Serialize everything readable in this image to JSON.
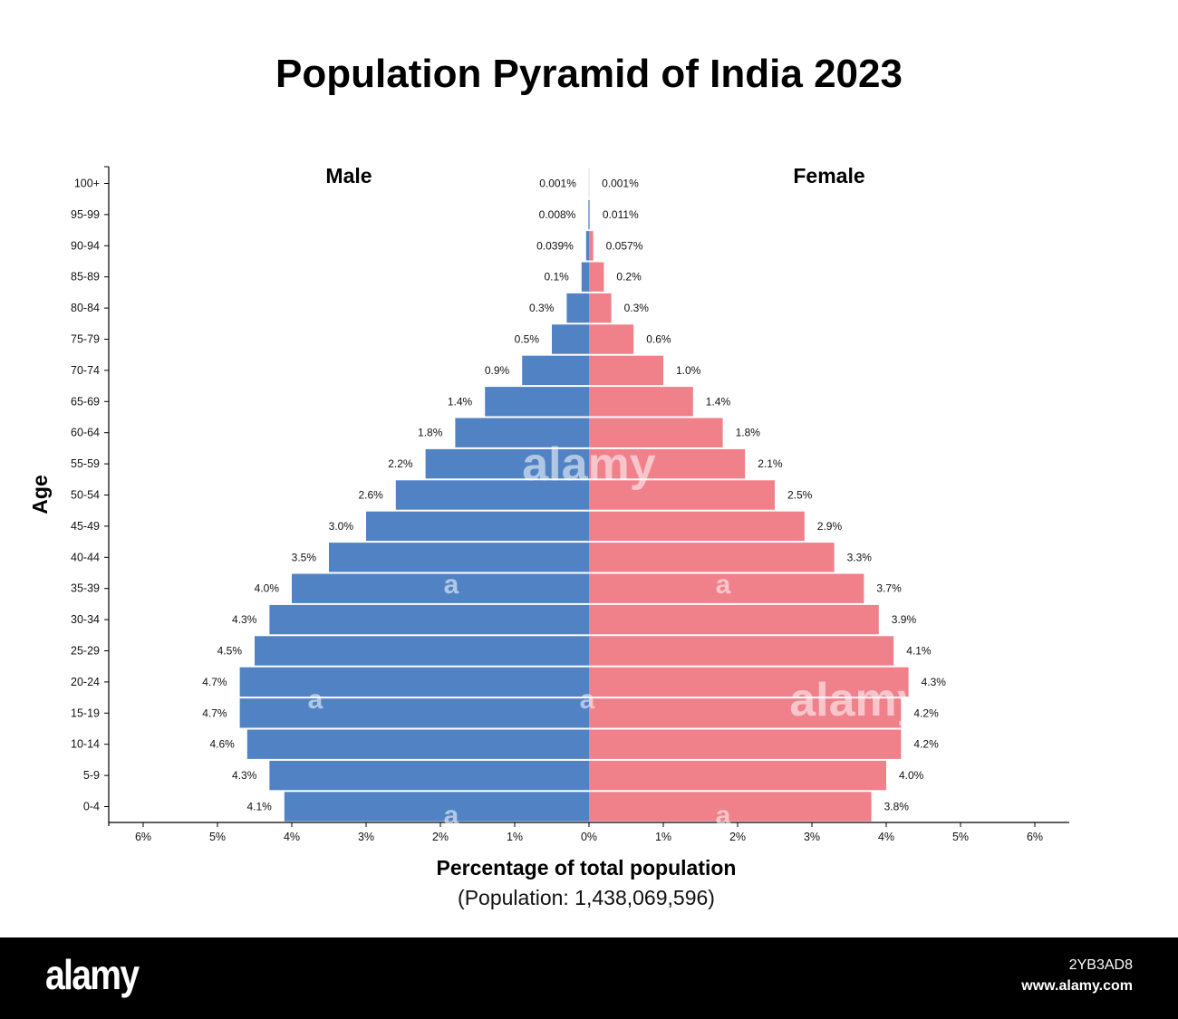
{
  "chart_data": {
    "type": "bar",
    "orientation": "horizontal",
    "layout": "population-pyramid",
    "title": "Population Pyramid of India 2023",
    "ylabel": "Age",
    "xlabel": "Percentage of total population",
    "subtitle": "(Population: 1,438,069,596)",
    "categories": [
      "0-4",
      "5-9",
      "10-14",
      "15-19",
      "20-24",
      "25-29",
      "30-34",
      "35-39",
      "40-44",
      "45-49",
      "50-54",
      "55-59",
      "60-64",
      "65-69",
      "70-74",
      "75-79",
      "80-84",
      "85-89",
      "90-94",
      "95-99",
      "100+"
    ],
    "series": [
      {
        "name": "Male",
        "color": "#5183c4",
        "values": [
          4.1,
          4.3,
          4.6,
          4.7,
          4.7,
          4.5,
          4.3,
          4.0,
          3.5,
          3.0,
          2.6,
          2.2,
          1.8,
          1.4,
          0.9,
          0.5,
          0.3,
          0.1,
          0.039,
          0.008,
          0.001
        ],
        "labels": [
          "4.1%",
          "4.3%",
          "4.6%",
          "4.7%",
          "4.7%",
          "4.5%",
          "4.3%",
          "4.0%",
          "3.5%",
          "3.0%",
          "2.6%",
          "2.2%",
          "1.8%",
          "1.4%",
          "0.9%",
          "0.5%",
          "0.3%",
          "0.1%",
          "0.039%",
          "0.008%",
          "0.001%"
        ]
      },
      {
        "name": "Female",
        "color": "#f0808a",
        "values": [
          3.8,
          4.0,
          4.2,
          4.2,
          4.3,
          4.1,
          3.9,
          3.7,
          3.3,
          2.9,
          2.5,
          2.1,
          1.8,
          1.4,
          1.0,
          0.6,
          0.3,
          0.2,
          0.057,
          0.011,
          0.001
        ],
        "labels": [
          "3.8%",
          "4.0%",
          "4.2%",
          "4.2%",
          "4.3%",
          "4.1%",
          "3.9%",
          "3.7%",
          "3.3%",
          "2.9%",
          "2.5%",
          "2.1%",
          "1.8%",
          "1.4%",
          "1.0%",
          "0.6%",
          "0.3%",
          "0.2%",
          "0.057%",
          "0.011%",
          "0.001%"
        ]
      }
    ],
    "xlim": [
      -6.5,
      6.5
    ],
    "xticks": [
      "6%",
      "5%",
      "4%",
      "3%",
      "2%",
      "1%",
      "0%",
      "1%",
      "2%",
      "3%",
      "4%",
      "5%",
      "6%"
    ],
    "grid": false,
    "legend": "none"
  },
  "watermark": {
    "brand": "alamy",
    "mark": "a",
    "image_id": "2YB3AD8",
    "url": "www.alamy.com"
  }
}
